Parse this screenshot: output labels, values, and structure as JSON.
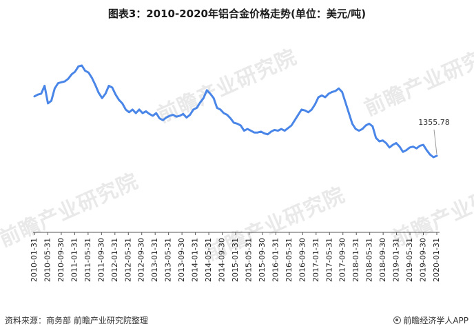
{
  "title": "图表3：2010-2020年铝合金价格走势(单位：美元/吨)",
  "source": "资料来源：商务部 前瞻产业研究院整理",
  "brand": "前瞻经济学人APP",
  "watermark": "前瞻产业研究院",
  "colors": {
    "line": "#4a86e8",
    "annotation": "#999999"
  },
  "chart_data": {
    "type": "line",
    "title": "图表3：2010-2020年铝合金价格走势(单位：美元/吨)",
    "x_tick_labels": [
      "2010-01-31",
      "2010-05-31",
      "2010-09-30",
      "2011-01-31",
      "2011-05-31",
      "2011-09-30",
      "2012-01-31",
      "2012-05-31",
      "2012-09-30",
      "2013-01-31",
      "2013-05-31",
      "2013-09-30",
      "2014-01-31",
      "2014-05-31",
      "2014-09-30",
      "2015-01-31",
      "2015-05-31",
      "2015-09-30",
      "2016-01-31",
      "2016-05-31",
      "2016-09-30",
      "2017-01-31",
      "2017-05-31",
      "2017-09-30",
      "2018-01-31",
      "2018-05-31",
      "2018-09-30",
      "2019-01-31",
      "2019-05-31",
      "2019-09-30",
      "2020-01-31"
    ],
    "y_axis_visible": false,
    "grid": false,
    "annotation": {
      "label": "1355.78",
      "value": 1355.78,
      "at": "last point"
    },
    "series": [
      {
        "values": [
          2030,
          2050,
          2060,
          2150,
          1950,
          1980,
          2120,
          2180,
          2190,
          2200,
          2230,
          2280,
          2310,
          2370,
          2380,
          2320,
          2300,
          2240,
          2160,
          2070,
          2010,
          2060,
          2150,
          2130,
          2050,
          1990,
          1950,
          1880,
          1850,
          1880,
          1840,
          1880,
          1840,
          1860,
          1830,
          1810,
          1840,
          1780,
          1760,
          1790,
          1810,
          1820,
          1800,
          1810,
          1830,
          1790,
          1820,
          1880,
          1900,
          1960,
          2010,
          2100,
          2060,
          2010,
          1900,
          1880,
          1840,
          1820,
          1780,
          1730,
          1720,
          1700,
          1640,
          1660,
          1640,
          1620,
          1620,
          1630,
          1610,
          1600,
          1630,
          1650,
          1640,
          1660,
          1640,
          1670,
          1700,
          1760,
          1820,
          1880,
          1870,
          1850,
          1880,
          1940,
          2020,
          2040,
          2020,
          2060,
          2080,
          2090,
          2120,
          2080,
          1960,
          1840,
          1720,
          1660,
          1640,
          1660,
          1700,
          1720,
          1690,
          1560,
          1520,
          1530,
          1500,
          1450,
          1480,
          1500,
          1460,
          1400,
          1420,
          1450,
          1460,
          1440,
          1470,
          1480,
          1420,
          1370,
          1340,
          1355.78
        ],
        "color": "#4a86e8"
      }
    ]
  }
}
